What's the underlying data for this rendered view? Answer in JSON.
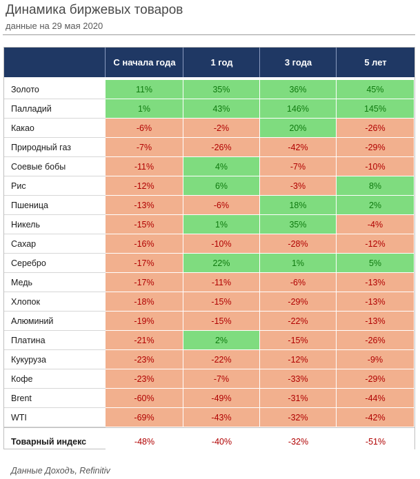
{
  "title": "Динамика биржевых товаров",
  "subtitle": "данные на 29 мая 2020",
  "source": "Данные Доходъ, Refinitiv",
  "colors": {
    "header_bg": "#1f3864",
    "positive_bg": "#7fdc7f",
    "negative_bg": "#f2b08e",
    "positive_text": "#0f7a0f",
    "negative_text": "#b00000"
  },
  "chart_data": {
    "type": "table",
    "title": "Динамика биржевых товаров",
    "subtitle": "данные на 29 мая 2020",
    "columns": [
      "С начала года",
      "1 год",
      "3 года",
      "5 лет"
    ],
    "rows": [
      {
        "name": "Золото",
        "values": [
          "11%",
          "35%",
          "36%",
          "45%"
        ]
      },
      {
        "name": "Палладий",
        "values": [
          "1%",
          "43%",
          "146%",
          "145%"
        ]
      },
      {
        "name": "Какао",
        "values": [
          "-6%",
          "-2%",
          "20%",
          "-26%"
        ]
      },
      {
        "name": "Природный газ",
        "values": [
          "-7%",
          "-26%",
          "-42%",
          "-29%"
        ]
      },
      {
        "name": "Соевые бобы",
        "values": [
          "-11%",
          "4%",
          "-7%",
          "-10%"
        ]
      },
      {
        "name": "Рис",
        "values": [
          "-12%",
          "6%",
          "-3%",
          "8%"
        ]
      },
      {
        "name": "Пшеница",
        "values": [
          "-13%",
          "-6%",
          "18%",
          "2%"
        ]
      },
      {
        "name": "Никель",
        "values": [
          "-15%",
          "1%",
          "35%",
          "-4%"
        ]
      },
      {
        "name": "Сахар",
        "values": [
          "-16%",
          "-10%",
          "-28%",
          "-12%"
        ]
      },
      {
        "name": "Серебро",
        "values": [
          "-17%",
          "22%",
          "1%",
          "5%"
        ]
      },
      {
        "name": "Медь",
        "values": [
          "-17%",
          "-11%",
          "-6%",
          "-13%"
        ]
      },
      {
        "name": "Хлопок",
        "values": [
          "-18%",
          "-15%",
          "-29%",
          "-13%"
        ]
      },
      {
        "name": "Алюминий",
        "values": [
          "-19%",
          "-15%",
          "-22%",
          "-13%"
        ]
      },
      {
        "name": "Платина",
        "values": [
          "-21%",
          "2%",
          "-15%",
          "-26%"
        ]
      },
      {
        "name": "Кукуруза",
        "values": [
          "-23%",
          "-22%",
          "-12%",
          "-9%"
        ]
      },
      {
        "name": "Кофе",
        "values": [
          "-23%",
          "-7%",
          "-33%",
          "-29%"
        ]
      },
      {
        "name": "Brent",
        "values": [
          "-60%",
          "-49%",
          "-31%",
          "-44%"
        ]
      },
      {
        "name": "WTI",
        "values": [
          "-69%",
          "-43%",
          "-32%",
          "-42%"
        ]
      }
    ],
    "total": {
      "name": "Товарный индекс",
      "values": [
        "-48%",
        "-40%",
        "-32%",
        "-51%"
      ]
    }
  }
}
